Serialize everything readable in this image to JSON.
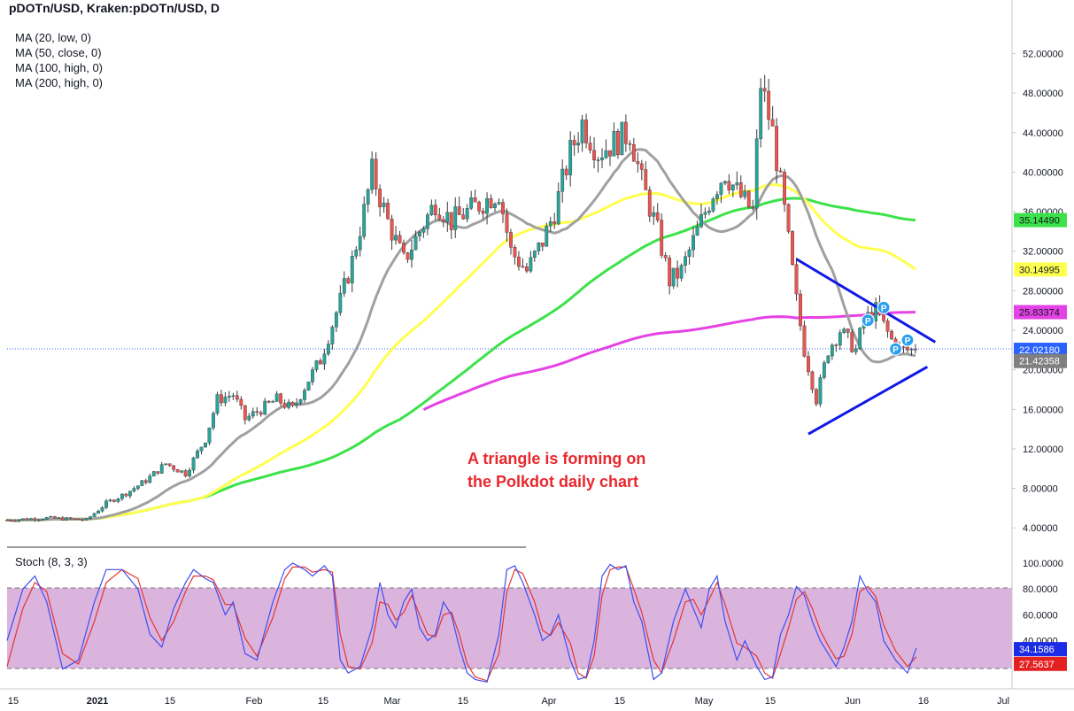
{
  "header": {
    "title": "pDOTn/USD, Kraken:pDOTn/USD, D",
    "indicators": [
      "MA (20, low, 0)",
      "MA (50, close, 0)",
      "MA (100, high, 0)",
      "MA (200, high, 0)"
    ]
  },
  "annotation": {
    "line1": "A triangle is forming on",
    "line2": "the Polkdot daily chart"
  },
  "stoch_label": "Stoch (8, 3, 3)",
  "colors": {
    "up": "#26a69a",
    "down": "#ef5350",
    "ma20": "#a0a0a0",
    "ma50": "#ffff4f",
    "ma100": "#3ce24a",
    "ma200": "#e542e5",
    "trend": "#1018e6",
    "pin": "#2b9ff0",
    "stoch_k": "#3e4ef0",
    "stoch_d": "#e43434",
    "stoch_band": "#dbb4de"
  },
  "chart_data": [
    {
      "type": "candlestick",
      "title": "pDOTn/USD, Kraken:pDOTn/USD, D",
      "ylim": [
        2,
        54
      ],
      "y_ticks": [
        "4.00000",
        "8.00000",
        "12.00000",
        "16.00000",
        "20.00000",
        "24.00000",
        "28.00000",
        "32.00000",
        "36.00000",
        "40.00000",
        "44.00000",
        "48.00000",
        "52.00000"
      ],
      "x_ticks": [
        "15",
        "2021",
        "15",
        "Feb",
        "15",
        "Mar",
        "15",
        "Apr",
        "15",
        "May",
        "15",
        "Jun",
        "16",
        "Jul"
      ],
      "price_path": [
        [
          0,
          4.8
        ],
        [
          10,
          5
        ],
        [
          20,
          4.8
        ],
        [
          25,
          6.5
        ],
        [
          30,
          7.5
        ],
        [
          35,
          8.8
        ],
        [
          40,
          10.5
        ],
        [
          45,
          9.5
        ],
        [
          50,
          13
        ],
        [
          53,
          17
        ],
        [
          57,
          17.5
        ],
        [
          60,
          15
        ],
        [
          64,
          16
        ],
        [
          68,
          17
        ],
        [
          72,
          16
        ],
        [
          76,
          19
        ],
        [
          79,
          21
        ],
        [
          84,
          27
        ],
        [
          87,
          31
        ],
        [
          90,
          36
        ],
        [
          92,
          40
        ],
        [
          96,
          35
        ],
        [
          100,
          31
        ],
        [
          104,
          34
        ],
        [
          108,
          37
        ],
        [
          112,
          35
        ],
        [
          116,
          36
        ],
        [
          120,
          37
        ],
        [
          124,
          38
        ],
        [
          127,
          32
        ],
        [
          131,
          30
        ],
        [
          135,
          33
        ],
        [
          138,
          36
        ],
        [
          142,
          42
        ],
        [
          145,
          45
        ],
        [
          149,
          42
        ],
        [
          153,
          43
        ],
        [
          157,
          44
        ],
        [
          160,
          39
        ],
        [
          164,
          34
        ],
        [
          167,
          29
        ],
        [
          170,
          30
        ],
        [
          174,
          34
        ],
        [
          178,
          38
        ],
        [
          181,
          40
        ],
        [
          184,
          38
        ],
        [
          188,
          36
        ],
        [
          190,
          49
        ],
        [
          193,
          44
        ],
        [
          196,
          36
        ],
        [
          199,
          27
        ],
        [
          201,
          22
        ],
        [
          204,
          17
        ],
        [
          207,
          22
        ],
        [
          210,
          24
        ],
        [
          214,
          22
        ],
        [
          216,
          25
        ],
        [
          219,
          26
        ],
        [
          223,
          23
        ],
        [
          225,
          22
        ],
        [
          228,
          22
        ],
        [
          229.2,
          22.02
        ]
      ],
      "current_price": 22.0218,
      "series": [
        {
          "name": "MA (20, low, 0)",
          "last": 21.42358
        },
        {
          "name": "MA (50, close, 0)",
          "last": 30.14995
        },
        {
          "name": "MA (100, high, 0)",
          "last": 35.1449
        },
        {
          "name": "MA (200, high, 0)",
          "last": 25.83374
        }
      ],
      "price_labels": [
        "35.14490",
        "30.14995",
        "25.83374",
        "22.02180",
        "21.42358"
      ],
      "triangle": {
        "upper": [
          [
            199,
            31.2
          ],
          [
            234,
            22.8
          ]
        ],
        "lower": [
          [
            202,
            13.5
          ],
          [
            232,
            20.3
          ]
        ]
      },
      "pivots_label": "P",
      "pivots": [
        [
          217,
          25.0
        ],
        [
          221,
          26.3
        ],
        [
          224,
          22.1
        ],
        [
          227,
          23.0
        ]
      ]
    },
    {
      "type": "line",
      "title": "Stoch (8, 3, 3)",
      "ylim": [
        0,
        100
      ],
      "y_ticks": [
        "20.0000",
        "40.0000",
        "60.0000",
        "80.0000",
        "100.0000"
      ],
      "bands": [
        20,
        80
      ],
      "k_path": [
        [
          0,
          40
        ],
        [
          4,
          80
        ],
        [
          7,
          90
        ],
        [
          10,
          70
        ],
        [
          14,
          18
        ],
        [
          18,
          25
        ],
        [
          22,
          70
        ],
        [
          25,
          95
        ],
        [
          29,
          95
        ],
        [
          33,
          80
        ],
        [
          36,
          45
        ],
        [
          39,
          35
        ],
        [
          42,
          65
        ],
        [
          45,
          85
        ],
        [
          47,
          95
        ],
        [
          50,
          88
        ],
        [
          52,
          85
        ],
        [
          55,
          60
        ],
        [
          57,
          70
        ],
        [
          60,
          30
        ],
        [
          63,
          25
        ],
        [
          67,
          70
        ],
        [
          70,
          95
        ],
        [
          72,
          100
        ],
        [
          75,
          95
        ],
        [
          77,
          90
        ],
        [
          80,
          98
        ],
        [
          82,
          90
        ],
        [
          84,
          25
        ],
        [
          86,
          15
        ],
        [
          89,
          20
        ],
        [
          92,
          50
        ],
        [
          94,
          85
        ],
        [
          96,
          60
        ],
        [
          98,
          50
        ],
        [
          100,
          70
        ],
        [
          102,
          80
        ],
        [
          104,
          50
        ],
        [
          106,
          40
        ],
        [
          108,
          45
        ],
        [
          110,
          70
        ],
        [
          112,
          60
        ],
        [
          114,
          35
        ],
        [
          116,
          15
        ],
        [
          118,
          10
        ],
        [
          121,
          8
        ],
        [
          124,
          45
        ],
        [
          126,
          95
        ],
        [
          128,
          98
        ],
        [
          130,
          85
        ],
        [
          133,
          60
        ],
        [
          135,
          40
        ],
        [
          137,
          45
        ],
        [
          139,
          60
        ],
        [
          142,
          25
        ],
        [
          144,
          10
        ],
        [
          146,
          12
        ],
        [
          148,
          40
        ],
        [
          150,
          90
        ],
        [
          152,
          99
        ],
        [
          154,
          95
        ],
        [
          156,
          98
        ],
        [
          158,
          70
        ],
        [
          160,
          55
        ],
        [
          163,
          10
        ],
        [
          165,
          15
        ],
        [
          168,
          55
        ],
        [
          171,
          80
        ],
        [
          173,
          65
        ],
        [
          175,
          50
        ],
        [
          177,
          80
        ],
        [
          179,
          90
        ],
        [
          181,
          55
        ],
        [
          184,
          25
        ],
        [
          186,
          40
        ],
        [
          189,
          20
        ],
        [
          191,
          10
        ],
        [
          193,
          12
        ],
        [
          195,
          45
        ],
        [
          197,
          60
        ],
        [
          199,
          82
        ],
        [
          201,
          75
        ],
        [
          203,
          55
        ],
        [
          205,
          40
        ],
        [
          207,
          30
        ],
        [
          209,
          20
        ],
        [
          211,
          35
        ],
        [
          213,
          55
        ],
        [
          215,
          90
        ],
        [
          217,
          78
        ],
        [
          219,
          70
        ],
        [
          221,
          40
        ],
        [
          224,
          25
        ],
        [
          227,
          15
        ],
        [
          229.2,
          34.16
        ]
      ],
      "d_path": [
        [
          0,
          20
        ],
        [
          4,
          65
        ],
        [
          7,
          85
        ],
        [
          10,
          78
        ],
        [
          14,
          30
        ],
        [
          18,
          22
        ],
        [
          22,
          55
        ],
        [
          25,
          85
        ],
        [
          29,
          95
        ],
        [
          33,
          88
        ],
        [
          36,
          58
        ],
        [
          39,
          40
        ],
        [
          42,
          55
        ],
        [
          45,
          78
        ],
        [
          47,
          90
        ],
        [
          50,
          90
        ],
        [
          52,
          87
        ],
        [
          55,
          68
        ],
        [
          57,
          68
        ],
        [
          60,
          42
        ],
        [
          63,
          28
        ],
        [
          67,
          58
        ],
        [
          70,
          88
        ],
        [
          72,
          97
        ],
        [
          75,
          97
        ],
        [
          77,
          93
        ],
        [
          80,
          95
        ],
        [
          82,
          93
        ],
        [
          84,
          45
        ],
        [
          86,
          20
        ],
        [
          89,
          18
        ],
        [
          92,
          38
        ],
        [
          94,
          70
        ],
        [
          96,
          68
        ],
        [
          98,
          56
        ],
        [
          100,
          62
        ],
        [
          102,
          75
        ],
        [
          104,
          60
        ],
        [
          106,
          45
        ],
        [
          108,
          43
        ],
        [
          110,
          60
        ],
        [
          112,
          62
        ],
        [
          114,
          45
        ],
        [
          116,
          22
        ],
        [
          118,
          12
        ],
        [
          121,
          9
        ],
        [
          124,
          30
        ],
        [
          126,
          78
        ],
        [
          128,
          95
        ],
        [
          130,
          92
        ],
        [
          133,
          70
        ],
        [
          135,
          48
        ],
        [
          137,
          44
        ],
        [
          139,
          54
        ],
        [
          142,
          38
        ],
        [
          144,
          15
        ],
        [
          146,
          11
        ],
        [
          148,
          28
        ],
        [
          150,
          75
        ],
        [
          152,
          95
        ],
        [
          154,
          97
        ],
        [
          156,
          97
        ],
        [
          158,
          80
        ],
        [
          160,
          62
        ],
        [
          163,
          25
        ],
        [
          165,
          15
        ],
        [
          168,
          40
        ],
        [
          171,
          70
        ],
        [
          173,
          72
        ],
        [
          175,
          60
        ],
        [
          177,
          72
        ],
        [
          179,
          85
        ],
        [
          181,
          68
        ],
        [
          184,
          38
        ],
        [
          186,
          35
        ],
        [
          189,
          28
        ],
        [
          191,
          15
        ],
        [
          193,
          11
        ],
        [
          195,
          30
        ],
        [
          197,
          50
        ],
        [
          199,
          72
        ],
        [
          201,
          78
        ],
        [
          203,
          65
        ],
        [
          205,
          48
        ],
        [
          207,
          36
        ],
        [
          209,
          26
        ],
        [
          211,
          28
        ],
        [
          213,
          45
        ],
        [
          215,
          78
        ],
        [
          217,
          82
        ],
        [
          219,
          74
        ],
        [
          221,
          52
        ],
        [
          224,
          32
        ],
        [
          227,
          20
        ],
        [
          229.2,
          27.56
        ]
      ],
      "last_k": 34.1586,
      "last_d": 27.5637,
      "value_labels": [
        "34.1586",
        "27.5637"
      ]
    }
  ]
}
